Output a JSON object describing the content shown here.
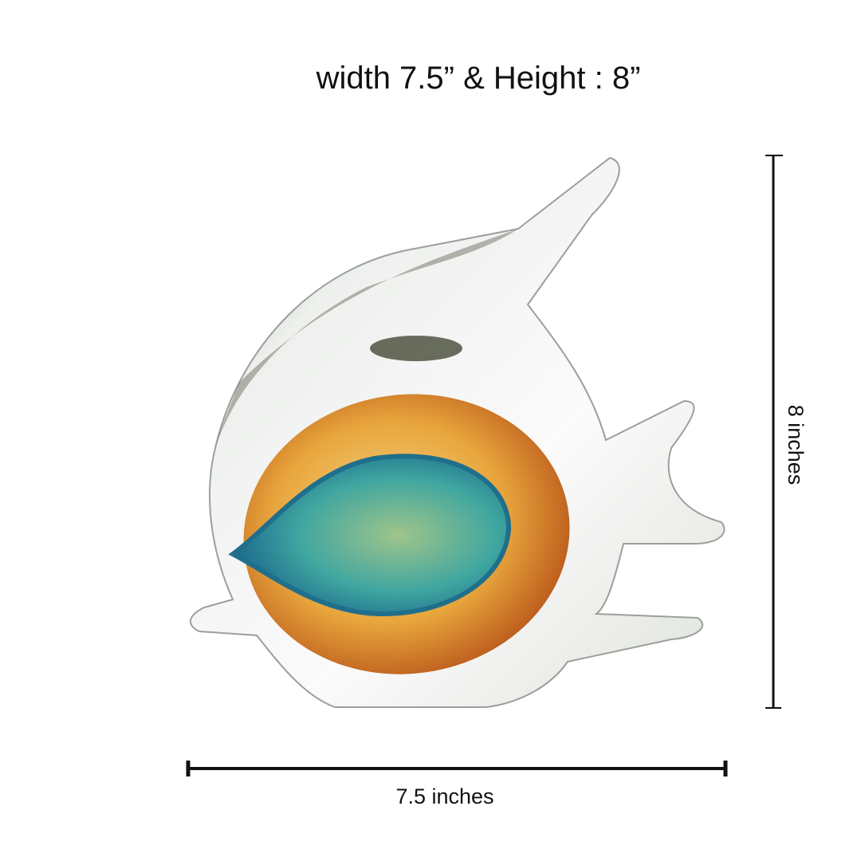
{
  "title": "width 7.5” & Height : 8”",
  "width_label": "7.5 inches",
  "height_label": "8 inches"
}
